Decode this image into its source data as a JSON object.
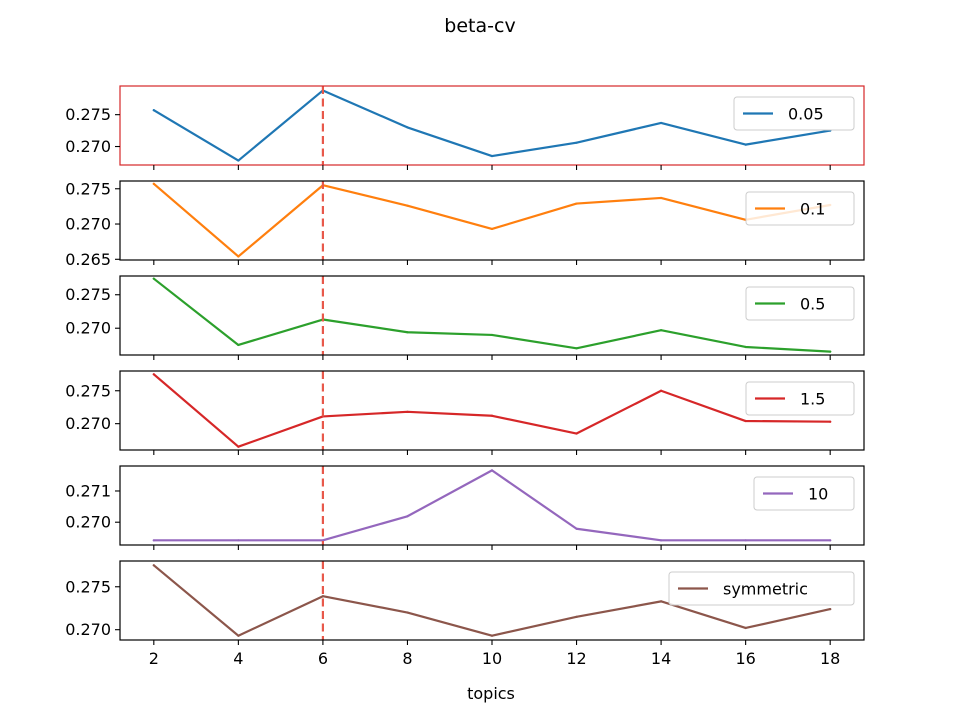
{
  "chart_data": {
    "type": "line",
    "title": "beta-cv",
    "xlabel": "topics",
    "x": [
      2,
      4,
      6,
      8,
      10,
      12,
      14,
      16,
      18
    ],
    "x_ticks": [
      "2",
      "4",
      "6",
      "8",
      "10",
      "12",
      "14",
      "16",
      "18"
    ],
    "xlim": [
      1.2,
      18.8
    ],
    "highlight_x": 6,
    "highlight_color": "#e8584a",
    "highlighted_panel_border_color": "#d62728",
    "grid": false,
    "legend_placement": "right",
    "panels": [
      {
        "series_name": "0.05",
        "color": "#1f77b4",
        "values": [
          0.2757,
          0.2678,
          0.2788,
          0.273,
          0.2685,
          0.2706,
          0.2737,
          0.2703,
          0.2725
        ],
        "ylim": [
          0.2671,
          0.2795
        ],
        "y_ticks": [
          0.27,
          0.275
        ],
        "y_tick_labels": [
          "0.270",
          "0.275"
        ],
        "highlighted": true
      },
      {
        "series_name": "0.1",
        "color": "#ff7f0e",
        "values": [
          0.2757,
          0.2654,
          0.2755,
          0.2726,
          0.2693,
          0.2729,
          0.2737,
          0.2706,
          0.2727
        ],
        "ylim": [
          0.2649,
          0.2761
        ],
        "y_ticks": [
          0.265,
          0.27,
          0.275
        ],
        "y_tick_labels": [
          "0.265",
          "0.270",
          "0.275"
        ],
        "highlighted": false
      },
      {
        "series_name": "0.5",
        "color": "#2ca02c",
        "values": [
          0.2774,
          0.2675,
          0.2713,
          0.2694,
          0.269,
          0.267,
          0.2697,
          0.2672,
          0.2665
        ],
        "ylim": [
          0.266,
          0.2778
        ],
        "y_ticks": [
          0.27,
          0.275
        ],
        "y_tick_labels": [
          "0.270",
          "0.275"
        ],
        "highlighted": false
      },
      {
        "series_name": "1.5",
        "color": "#d62728",
        "values": [
          0.2775,
          0.2665,
          0.2711,
          0.2718,
          0.2712,
          0.2685,
          0.275,
          0.2704,
          0.2703
        ],
        "ylim": [
          0.266,
          0.278
        ],
        "y_ticks": [
          0.27,
          0.275
        ],
        "y_tick_labels": [
          "0.270",
          "0.275"
        ],
        "highlighted": false
      },
      {
        "series_name": "10",
        "color": "#9467bd",
        "values": [
          0.26942,
          0.26942,
          0.26942,
          0.27019,
          0.27166,
          0.26979,
          0.26942,
          0.26942,
          0.26942
        ],
        "ylim": [
          0.26927,
          0.2718
        ],
        "y_ticks": [
          0.27,
          0.271
        ],
        "y_tick_labels": [
          "0.270",
          "0.271"
        ],
        "highlighted": false
      },
      {
        "series_name": "symmetric",
        "color": "#8c564b",
        "values": [
          0.2775,
          0.2693,
          0.2739,
          0.272,
          0.2693,
          0.2715,
          0.2733,
          0.2702,
          0.2724
        ],
        "ylim": [
          0.2688,
          0.278
        ],
        "y_ticks": [
          0.27,
          0.275
        ],
        "y_tick_labels": [
          "0.270",
          "0.275"
        ],
        "highlighted": false
      }
    ]
  }
}
